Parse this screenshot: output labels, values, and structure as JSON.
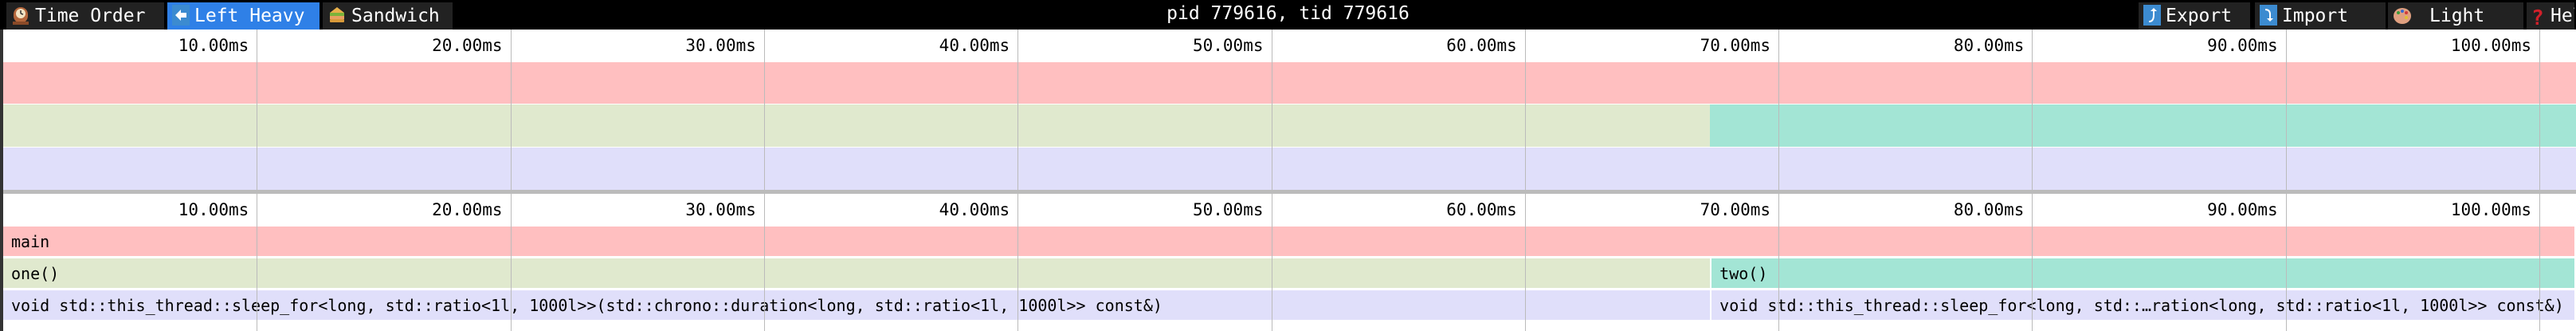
{
  "toolbar": {
    "tabs": [
      {
        "label": "Time Order",
        "icon": "mantel-clock-icon",
        "active": false
      },
      {
        "label": "Left Heavy",
        "icon": "left-arrow-icon",
        "active": true
      },
      {
        "label": "Sandwich",
        "icon": "sandwich-icon",
        "active": false
      }
    ],
    "title": "pid 779616, tid 779616",
    "actions": [
      {
        "label": "Export",
        "icon": "export-icon"
      },
      {
        "label": "Import",
        "icon": "import-icon"
      },
      {
        "label": "Light",
        "icon": "palette-icon"
      },
      {
        "label": "Help",
        "icon": "question-icon"
      }
    ],
    "active_color": "#2f80e7"
  },
  "ruler": {
    "ticks": [
      {
        "value": 10,
        "label": "10.00ms"
      },
      {
        "value": 20,
        "label": "20.00ms"
      },
      {
        "value": 30,
        "label": "30.00ms"
      },
      {
        "value": 40,
        "label": "40.00ms"
      },
      {
        "value": 50,
        "label": "50.00ms"
      },
      {
        "value": 60,
        "label": "60.00ms"
      },
      {
        "value": 70,
        "label": "70.00ms"
      },
      {
        "value": 80,
        "label": "80.00ms"
      },
      {
        "value": 90,
        "label": "90.00ms"
      },
      {
        "value": 100,
        "label": "100.00ms"
      }
    ]
  },
  "flamegraph": {
    "frames": [
      {
        "label": "main",
        "depth": 0,
        "start": 0,
        "end": 111.6,
        "color": "#ffbfc0"
      },
      {
        "label": "one()",
        "depth": 1,
        "start": 0,
        "end": 67.3,
        "color": "#e0e9ce"
      },
      {
        "label": "two()",
        "depth": 1,
        "start": 67.3,
        "end": 111.6,
        "color": "#a3e5d5"
      },
      {
        "label": "void std::this_thread::sleep_for<long, std::ratio<1l, 1000l>>(std::chrono::duration<long, std::ratio<1l, 1000l>> const&)",
        "depth": 2,
        "start": 0,
        "end": 67.3,
        "color": "#e0dffa"
      },
      {
        "label": "void std::this_thread::sleep_for<long, std::…ration<long, std::ratio<1l, 1000l>> const&)",
        "depth": 2,
        "start": 67.3,
        "end": 111.6,
        "color": "#e0dffa"
      }
    ]
  }
}
